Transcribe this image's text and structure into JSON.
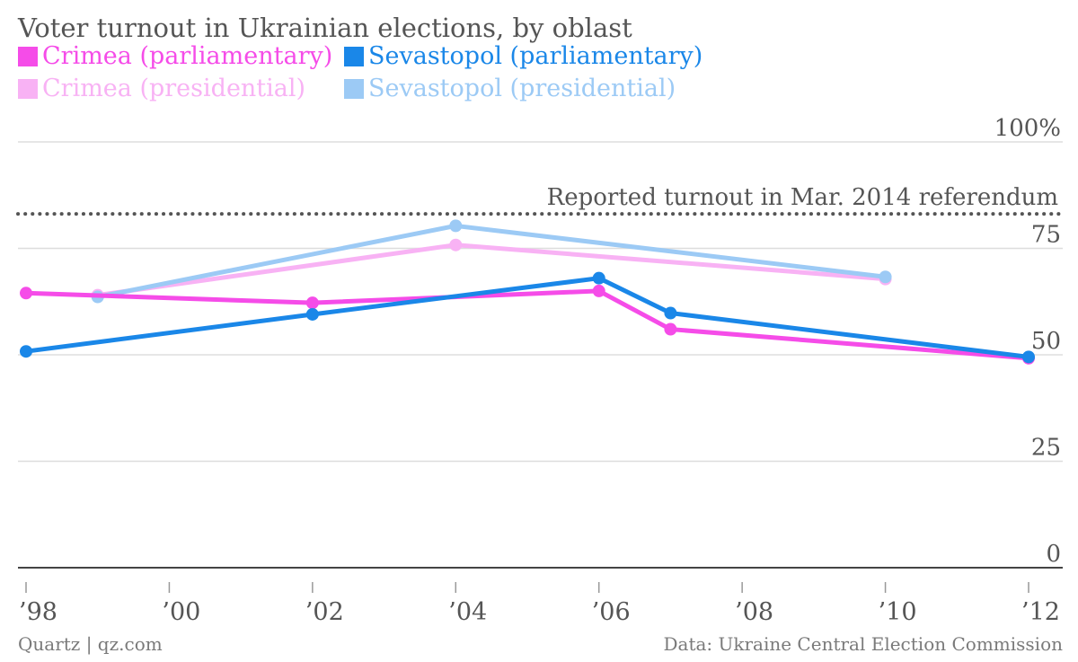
{
  "chart_data": {
    "type": "line",
    "title": "Voter turnout in Ukrainian elections, by oblast",
    "xlabel": "",
    "ylabel": "",
    "xlim": [
      1998,
      2012
    ],
    "ylim": [
      0,
      100
    ],
    "y_ticks": [
      {
        "value": 0,
        "label": "0"
      },
      {
        "value": 25,
        "label": "25"
      },
      {
        "value": 50,
        "label": "50"
      },
      {
        "value": 75,
        "label": "75"
      },
      {
        "value": 100,
        "label": "100%"
      }
    ],
    "x_ticks": [
      {
        "value": 1998,
        "label": "’98"
      },
      {
        "value": 2000,
        "label": "’00"
      },
      {
        "value": 2002,
        "label": "’02"
      },
      {
        "value": 2004,
        "label": "’04"
      },
      {
        "value": 2006,
        "label": "’06"
      },
      {
        "value": 2008,
        "label": "’08"
      },
      {
        "value": 2010,
        "label": "’10"
      },
      {
        "value": 2012,
        "label": "’12"
      }
    ],
    "grid": true,
    "legend_position": "top-left",
    "series": [
      {
        "name": "Crimea (parliamentary)",
        "color": "#f54ce8",
        "points": [
          {
            "x": 1998,
            "y": 64.5
          },
          {
            "x": 2002,
            "y": 62.2
          },
          {
            "x": 2006,
            "y": 65.0
          },
          {
            "x": 2007,
            "y": 56.0
          },
          {
            "x": 2012,
            "y": 49.2
          }
        ]
      },
      {
        "name": "Sevastopol (parliamentary)",
        "color": "#1a87e8",
        "points": [
          {
            "x": 1998,
            "y": 50.8
          },
          {
            "x": 2002,
            "y": 59.5
          },
          {
            "x": 2006,
            "y": 68.0
          },
          {
            "x": 2007,
            "y": 59.8
          },
          {
            "x": 2012,
            "y": 49.5
          }
        ]
      },
      {
        "name": "Crimea (presidential)",
        "color": "#f8b2f4",
        "points": [
          {
            "x": 1999,
            "y": 64.0
          },
          {
            "x": 2004,
            "y": 75.8
          },
          {
            "x": 2010,
            "y": 67.8
          }
        ]
      },
      {
        "name": "Sevastopol (presidential)",
        "color": "#9ccaf5",
        "points": [
          {
            "x": 1999,
            "y": 63.6
          },
          {
            "x": 2004,
            "y": 80.3
          },
          {
            "x": 2010,
            "y": 68.3
          }
        ]
      }
    ],
    "reference_line": {
      "y": 83.1,
      "label": "Reported turnout in Mar. 2014 referendum",
      "color": "#555555"
    },
    "source_left": "Quartz | qz.com",
    "source_right": "Data: Ukraine Central Election Commission"
  }
}
